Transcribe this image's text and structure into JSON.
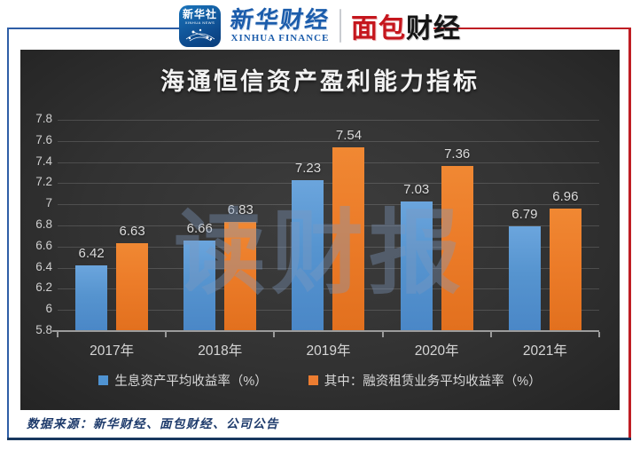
{
  "header": {
    "xinhua_badge": {
      "cn": "新华社",
      "en": "XINHUA NEWS"
    },
    "xinhua_finance": {
      "cn": "新华财经",
      "en": "XINHUA FINANCE"
    },
    "bread_finance": {
      "part_red": "面包",
      "part_black": "财经"
    }
  },
  "chart_data": {
    "type": "bar",
    "title": "海通恒信资产盈利能力指标",
    "categories": [
      "2017年",
      "2018年",
      "2019年",
      "2020年",
      "2021年"
    ],
    "series": [
      {
        "name": "生息资产平均收益率（%）",
        "color": "#4f93d2",
        "values": [
          6.42,
          6.66,
          7.23,
          7.03,
          6.79
        ]
      },
      {
        "name": "其中：融资租赁业务平均收益率（%）",
        "color": "#ed7d31",
        "values": [
          6.63,
          6.83,
          7.54,
          7.36,
          6.96
        ]
      }
    ],
    "ylim": [
      5.8,
      7.8
    ],
    "ytick_step": 0.2,
    "yticks": [
      "7.8",
      "7.6",
      "7.4",
      "7.2",
      "7",
      "6.8",
      "6.6",
      "6.4",
      "6.2",
      "6",
      "5.8"
    ],
    "grid": true,
    "legend_position": "bottom",
    "data_labels": true
  },
  "watermark": "读财报",
  "source": "数据来源：新华财经、面包财经、公司公告",
  "colors": {
    "bar_blue": "#4f93d2",
    "bar_orange": "#ed7d31",
    "panel_background_center": "#3d3d3d",
    "panel_background_edge": "#242424",
    "frame_blue": "#2e5ea6",
    "frame_red": "#bf1e24",
    "frame_bottom_navy": "#17375e",
    "title_text": "#f2f2f2",
    "axis_text": "#cfcfcf",
    "source_text": "#1d3a6b",
    "logo_blue": "#1b5cab",
    "logo_red": "#c5161d"
  }
}
